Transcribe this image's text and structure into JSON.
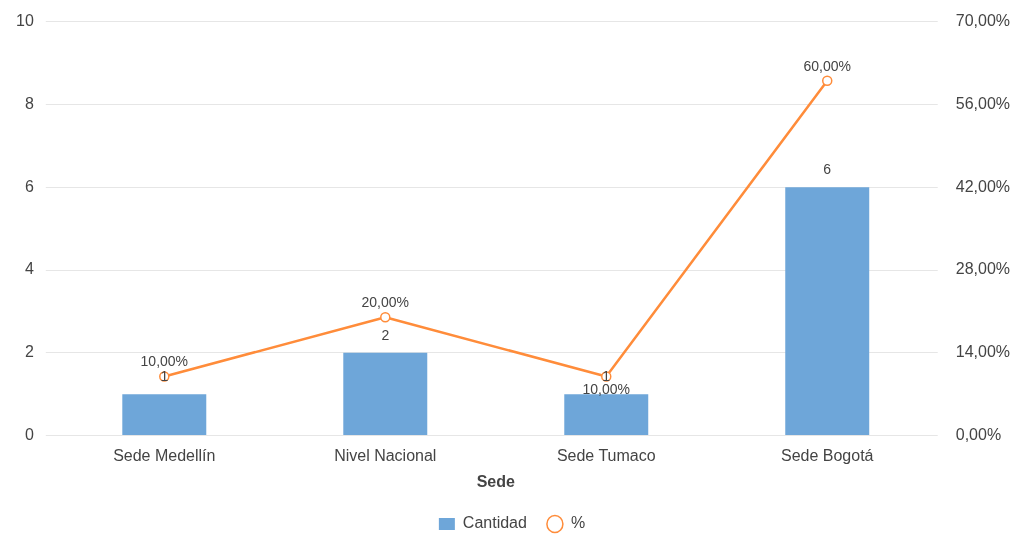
{
  "chart_data": {
    "type": "bar",
    "xlabel": "Sede",
    "categories": [
      "Sede Medellín",
      "Nivel Nacional",
      "Sede Tumaco",
      "Sede Bogotá"
    ],
    "series": [
      {
        "name": "Cantidad",
        "color": "#6ea6d9",
        "values": [
          1,
          2,
          1,
          6
        ],
        "value_labels": [
          "1",
          "2",
          "1",
          "6"
        ]
      },
      {
        "name": "%",
        "type": "line",
        "axis": "y2",
        "color": "#ff8c3a",
        "values": [
          10,
          20,
          10,
          60
        ],
        "value_labels": [
          "10,00%",
          "20,00%",
          "10,00%",
          "60,00%"
        ]
      }
    ],
    "ylim": [
      0,
      10
    ],
    "yticks": [
      0,
      2,
      4,
      6,
      8,
      10
    ],
    "y2lim": [
      0,
      70
    ],
    "y2ticks": [
      {
        "value": 0,
        "label": "0,00%"
      },
      {
        "value": 14,
        "label": "14,00%"
      },
      {
        "value": 28,
        "label": "28,00%"
      },
      {
        "value": 42,
        "label": "42,00%"
      },
      {
        "value": 56,
        "label": "56,00%"
      },
      {
        "value": 70,
        "label": "70,00%"
      }
    ],
    "grid": "y",
    "legend": "bottom",
    "marker": "circle",
    "line_style": "solid"
  }
}
